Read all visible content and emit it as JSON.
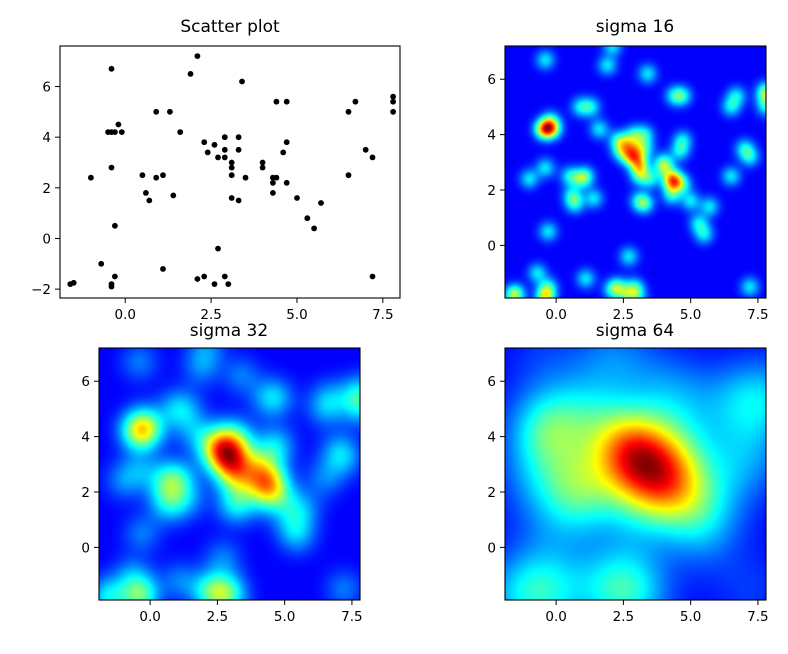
{
  "chart_data": [
    {
      "type": "scatter",
      "title": "Scatter plot",
      "xlim": [
        -1.9,
        8.0
      ],
      "ylim": [
        -2.35,
        7.6
      ],
      "xticks": [
        0.0,
        2.5,
        5.0,
        7.5
      ],
      "xtick_labels": [
        "0.0",
        "2.5",
        "5.0",
        "7.5"
      ],
      "yticks": [
        -2,
        0,
        2,
        4,
        6
      ],
      "ytick_labels": [
        "−2",
        "0",
        "2",
        "4",
        "6"
      ],
      "marker_color": "#000000",
      "points": [
        [
          -1.6,
          -1.8
        ],
        [
          -1.5,
          -1.75
        ],
        [
          -1.0,
          2.4
        ],
        [
          -0.7,
          -1.0
        ],
        [
          -0.5,
          4.2
        ],
        [
          -0.4,
          4.2
        ],
        [
          -0.4,
          6.7
        ],
        [
          -0.4,
          2.8
        ],
        [
          -0.4,
          -1.8
        ],
        [
          -0.4,
          -1.9
        ],
        [
          -0.3,
          0.5
        ],
        [
          -0.3,
          -1.5
        ],
        [
          -0.3,
          4.2
        ],
        [
          -0.2,
          4.5
        ],
        [
          -0.1,
          4.2
        ],
        [
          0.5,
          2.5
        ],
        [
          0.6,
          1.8
        ],
        [
          0.7,
          1.5
        ],
        [
          0.9,
          5.0
        ],
        [
          0.9,
          2.4
        ],
        [
          1.1,
          2.5
        ],
        [
          1.1,
          -1.2
        ],
        [
          1.3,
          5.0
        ],
        [
          1.4,
          1.7
        ],
        [
          1.6,
          4.2
        ],
        [
          1.9,
          6.5
        ],
        [
          2.1,
          7.2
        ],
        [
          2.1,
          -1.6
        ],
        [
          2.3,
          3.8
        ],
        [
          2.3,
          -1.5
        ],
        [
          2.4,
          3.4
        ],
        [
          2.6,
          3.7
        ],
        [
          2.6,
          -1.8
        ],
        [
          2.7,
          -0.4
        ],
        [
          2.7,
          3.2
        ],
        [
          2.9,
          4.0
        ],
        [
          2.9,
          3.5
        ],
        [
          2.9,
          3.2
        ],
        [
          2.9,
          -1.5
        ],
        [
          3.0,
          -1.8
        ],
        [
          3.1,
          3.0
        ],
        [
          3.1,
          2.8
        ],
        [
          3.1,
          2.5
        ],
        [
          3.1,
          1.6
        ],
        [
          3.3,
          4.0
        ],
        [
          3.3,
          3.5
        ],
        [
          3.3,
          1.5
        ],
        [
          3.4,
          6.2
        ],
        [
          3.5,
          2.4
        ],
        [
          4.0,
          3.0
        ],
        [
          4.0,
          2.8
        ],
        [
          4.3,
          2.4
        ],
        [
          4.3,
          2.2
        ],
        [
          4.3,
          1.8
        ],
        [
          4.4,
          5.4
        ],
        [
          4.4,
          2.4
        ],
        [
          4.6,
          3.4
        ],
        [
          4.7,
          5.4
        ],
        [
          4.7,
          3.8
        ],
        [
          4.7,
          2.2
        ],
        [
          5.0,
          1.6
        ],
        [
          5.3,
          0.8
        ],
        [
          5.5,
          0.4
        ],
        [
          5.7,
          1.4
        ],
        [
          6.5,
          5.0
        ],
        [
          6.5,
          2.5
        ],
        [
          6.7,
          5.4
        ],
        [
          7.0,
          3.5
        ],
        [
          7.2,
          3.2
        ],
        [
          7.2,
          -1.5
        ],
        [
          7.8,
          5.6
        ],
        [
          7.8,
          5.4
        ],
        [
          7.8,
          5.0
        ]
      ]
    },
    {
      "type": "heatmap",
      "title": "sigma 16",
      "sigma": 16,
      "colormap": "jet",
      "xlim": [
        -1.9,
        7.8
      ],
      "ylim": [
        -1.9,
        7.2
      ],
      "xticks": [
        0.0,
        2.5,
        5.0,
        7.5
      ],
      "xtick_labels": [
        "0.0",
        "2.5",
        "5.0",
        "7.5"
      ],
      "yticks": [
        0,
        2,
        4,
        6
      ],
      "ytick_labels": [
        "0",
        "2",
        "4",
        "6"
      ]
    },
    {
      "type": "heatmap",
      "title": "sigma 32",
      "sigma": 32,
      "colormap": "jet",
      "xlim": [
        -1.9,
        7.8
      ],
      "ylim": [
        -1.9,
        7.2
      ],
      "xticks": [
        0.0,
        2.5,
        5.0,
        7.5
      ],
      "xtick_labels": [
        "0.0",
        "2.5",
        "5.0",
        "7.5"
      ],
      "yticks": [
        0,
        2,
        4,
        6
      ],
      "ytick_labels": [
        "0",
        "2",
        "4",
        "6"
      ]
    },
    {
      "type": "heatmap",
      "title": "sigma 64",
      "sigma": 64,
      "colormap": "jet",
      "xlim": [
        -1.9,
        7.8
      ],
      "ylim": [
        -1.9,
        7.2
      ],
      "xticks": [
        0.0,
        2.5,
        5.0,
        7.5
      ],
      "xtick_labels": [
        "0.0",
        "2.5",
        "5.0",
        "7.5"
      ],
      "yticks": [
        0,
        2,
        4,
        6
      ],
      "ytick_labels": [
        "0",
        "2",
        "4",
        "6"
      ]
    }
  ]
}
